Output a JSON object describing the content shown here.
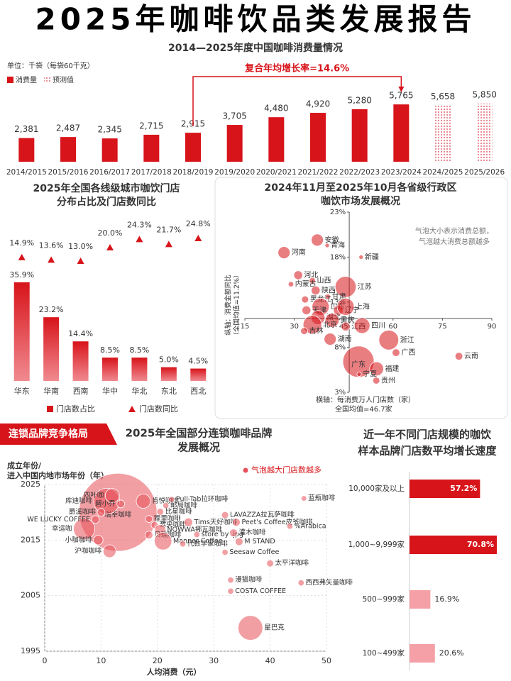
{
  "title": "2025年咖啡饮品类发展报告",
  "section_title": "连锁品牌竞争格局",
  "chart_data": [
    {
      "type": "bar",
      "title": "2014—2025年度中国咖啡消费量情况",
      "unit": "单位：千袋（每袋60千克）",
      "categories": [
        "2014/2015",
        "2015/2016",
        "2016/2017",
        "2017/2018",
        "2018/2019",
        "2019/2020",
        "2020/2021",
        "2021/2022",
        "2022/2023",
        "2023/2024",
        "2024/2025",
        "2025/2026"
      ],
      "series": [
        {
          "name": "消费量",
          "color": "#d7141a",
          "values": [
            2381,
            2487,
            2345,
            2715,
            2915,
            3705,
            4480,
            4920,
            5280,
            5765,
            null,
            null
          ],
          "value_labels": [
            "2,381",
            "2,487",
            "2,345",
            "2,715",
            "2,915",
            "3,705",
            "4,480",
            "4,920",
            "5,280",
            "5,765",
            null,
            null
          ]
        },
        {
          "name": "预测值",
          "color": "#e8808a",
          "pattern": "dots",
          "values": [
            null,
            null,
            null,
            null,
            null,
            null,
            null,
            null,
            null,
            null,
            5658,
            5850
          ],
          "value_labels": [
            null,
            null,
            null,
            null,
            null,
            null,
            null,
            null,
            null,
            null,
            "5,658",
            "5,850"
          ]
        }
      ],
      "annotation": {
        "text": "复合年均增长率=14.6%",
        "span": [
          "2018/2019",
          "2023/2024"
        ]
      }
    },
    {
      "type": "bar",
      "title": [
        "2025年全国各线级城市咖饮门店",
        "分布占比及门店数同比"
      ],
      "categories": [
        "华东",
        "华南",
        "西南",
        "华中",
        "华北",
        "东北",
        "西北"
      ],
      "series": [
        {
          "name": "门店数占比",
          "color": "#d7141a",
          "values": [
            35.9,
            23.2,
            14.4,
            8.5,
            8.5,
            5.0,
            4.5
          ],
          "value_labels": [
            "35.9%",
            "23.2%",
            "14.4%",
            "8.5%",
            "8.5%",
            "5.0%",
            "4.5%"
          ]
        },
        {
          "name": "门店数同比",
          "color": "#d7141a",
          "marker": "triangle",
          "values": [
            14.9,
            13.6,
            13.0,
            20.0,
            24.3,
            21.7,
            24.8
          ],
          "value_labels": [
            "14.9%",
            "13.6%",
            "13.0%",
            "20.0%",
            "24.3%",
            "21.7%",
            "24.8%"
          ]
        }
      ]
    },
    {
      "type": "bubble",
      "title": [
        "2024年11月至2025年10月各省级行政区",
        "咖饮市场发展概况"
      ],
      "note": [
        "气泡大小表示消费总额，",
        "气泡越大消费总额越多"
      ],
      "xlabel": [
        "横轴：每消费万人门店数（家）",
        "全国均值=46.7家"
      ],
      "ylabel": [
        "纵轴：消费金额同比",
        "（全国均值=11.2%）"
      ],
      "crossing": [
        46.7,
        11.2
      ],
      "color": "#d7141a",
      "xlim": [
        15,
        90
      ],
      "xticks": [
        15,
        30,
        45,
        60,
        75,
        90
      ],
      "ylim": [
        3,
        23
      ],
      "yticks": [
        {
          "value": 3,
          "label": "3%"
        },
        {
          "value": 8,
          "label": "8%"
        },
        {
          "value": 13,
          "label": "13%"
        },
        {
          "value": 18,
          "label": "18%"
        },
        {
          "value": 23,
          "label": "23%"
        }
      ],
      "points": [
        {
          "label": "安徽",
          "x": 37,
          "y": 19.9,
          "size": 15
        },
        {
          "label": "青海",
          "x": 40,
          "y": 19.3,
          "size": 2
        },
        {
          "label": "河南",
          "x": 26.9,
          "y": 18.5,
          "size": 15
        },
        {
          "label": "新疆",
          "x": 50.3,
          "y": 18.0,
          "size": 2
        },
        {
          "label": "河北",
          "x": 31.2,
          "y": 16.0,
          "size": 8
        },
        {
          "label": "山西",
          "x": 35.5,
          "y": 15.4,
          "size": 4
        },
        {
          "label": "内蒙古",
          "x": 29,
          "y": 15.0,
          "size": 3
        },
        {
          "label": "陕西",
          "x": 36.5,
          "y": 14.3,
          "size": 8
        },
        {
          "label": "江苏",
          "x": 45.6,
          "y": 14.7,
          "size": 45
        },
        {
          "label": "甘肃",
          "x": 40.2,
          "y": 13.6,
          "size": 3
        },
        {
          "label": "黑龙江",
          "x": 33.3,
          "y": 13.3,
          "size": 5
        },
        {
          "label": "山东",
          "x": 38,
          "y": 12.5,
          "size": 30
        },
        {
          "label": "天津",
          "x": 33.7,
          "y": 12.1,
          "size": 8
        },
        {
          "label": "辽宁",
          "x": 43.4,
          "y": 12.1,
          "size": 10
        },
        {
          "label": "上海",
          "x": 45.6,
          "y": 12.5,
          "size": 30
        },
        {
          "label": "湖北",
          "x": 37.2,
          "y": 11.3,
          "size": 20
        },
        {
          "label": "重庆",
          "x": 41.5,
          "y": 11.0,
          "size": 20
        },
        {
          "label": "北京",
          "x": 35.5,
          "y": 10.5,
          "size": 35
        },
        {
          "label": "吉林",
          "x": 33,
          "y": 9.8,
          "size": 5
        },
        {
          "label": "湖南",
          "x": 40.9,
          "y": 8.9,
          "size": 15
        },
        {
          "label": "江西",
          "x": 45.6,
          "y": 10.3,
          "size": 8
        },
        {
          "label": "四川",
          "x": 50.6,
          "y": 10.4,
          "size": 25
        },
        {
          "label": "浙江",
          "x": 58.7,
          "y": 8.8,
          "size": 40
        },
        {
          "label": "广东",
          "x": 49.5,
          "y": 6.4,
          "size": 100
        },
        {
          "label": "广西",
          "x": 60.9,
          "y": 7.4,
          "size": 6
        },
        {
          "label": "云南",
          "x": 80,
          "y": 7.0,
          "size": 6
        },
        {
          "label": "福建",
          "x": 55,
          "y": 5.6,
          "size": 20
        },
        {
          "label": "宁夏",
          "x": 49.7,
          "y": 5.0,
          "size": 2
        },
        {
          "label": "贵州",
          "x": 54.9,
          "y": 4.3,
          "size": 5
        }
      ]
    },
    {
      "type": "bubble",
      "title": [
        "2025年全国部分连锁咖啡品牌",
        "发展概况"
      ],
      "ylabel": [
        "成立年份/",
        "进入中国内地市场年份（年）"
      ],
      "xlabel": "人均消费（元）",
      "legend": "气泡越大门店数越多",
      "color": "#e8505a",
      "xlim": [
        0,
        50
      ],
      "xticks": [
        0,
        10,
        20,
        30,
        40,
        50
      ],
      "ylim": [
        1995,
        2025
      ],
      "yticks": [
        1995,
        2005,
        2015,
        2025
      ],
      "points": [
        {
          "label": "瑞幸咖啡",
          "x": 13,
          "y": 2020,
          "size": 100
        },
        {
          "label": "库迪咖啡",
          "x": 11,
          "y": 2022,
          "size": 11
        },
        {
          "label": "幸运咖",
          "x": 7,
          "y": 2017,
          "size": 7.5
        },
        {
          "label": "四叶咖",
          "x": 12,
          "y": 2023,
          "size": 3.3
        },
        {
          "label": "肯悦咖啡",
          "x": 17.5,
          "y": 2022,
          "size": 3.3
        },
        {
          "label": "碧小乔",
          "x": 13.5,
          "y": 2021.5,
          "size": 1
        },
        {
          "label": "爵溪咖啡",
          "x": 10,
          "y": 2020,
          "size": 1
        },
        {
          "label": "WE LUCKY COFFEE",
          "x": 9,
          "y": 2018.7,
          "size": 1
        },
        {
          "label": "小咖咖啡",
          "x": 9.5,
          "y": 2015,
          "size": 1.5
        },
        {
          "label": "沪咖咖啡",
          "x": 11.5,
          "y": 2013,
          "size": 2.7
        },
        {
          "label": "Pull-Tab拉环咖啡",
          "x": 22.5,
          "y": 2022.3,
          "size": 0.6
        },
        {
          "label": "邮局咖啡",
          "x": 21.5,
          "y": 2021.2,
          "size": 0.6
        },
        {
          "label": "比星咖啡",
          "x": 20.5,
          "y": 2020.1,
          "size": 0.8
        },
        {
          "label": "狸里咖啡",
          "x": 18.5,
          "y": 2018.8,
          "size": 0.8
        },
        {
          "label": "鹭央咖啡",
          "x": 19.5,
          "y": 2017.7,
          "size": 0.8
        },
        {
          "label": "NOWWA挪瓦咖啡",
          "x": 20.5,
          "y": 2016.8,
          "size": 2
        },
        {
          "label": "贝瑞咖啡",
          "x": 18.5,
          "y": 2015.9,
          "size": 1
        },
        {
          "label": "Manner Coffee",
          "x": 21,
          "y": 2014.8,
          "size": 5
        },
        {
          "label": "Tims天好咖啡",
          "x": 25.5,
          "y": 2018.2,
          "size": 1.2
        },
        {
          "label": "store by .jpg",
          "x": 27,
          "y": 2016,
          "size": 0.6
        },
        {
          "label": "代数学家咖啡",
          "x": 24.5,
          "y": 2014.3,
          "size": 0.6
        },
        {
          "label": "LAVAZZA拉瓦萨咖啡",
          "x": 32,
          "y": 2019.5,
          "size": 0.8
        },
        {
          "label": "Peet's Coffee皮爷咖啡",
          "x": 34,
          "y": 2018.2,
          "size": 1
        },
        {
          "label": "灌木咖啡",
          "x": 33.5,
          "y": 2016.3,
          "size": 1
        },
        {
          "label": "M STAND",
          "x": 34.5,
          "y": 2014.7,
          "size": 1
        },
        {
          "label": "Seesaw Coffee",
          "x": 32,
          "y": 2012.8,
          "size": 0.6
        },
        {
          "label": "蓝瓶咖啡",
          "x": 46,
          "y": 2022.5,
          "size": 0.5
        },
        {
          "label": "%Arabica",
          "x": 43.5,
          "y": 2017.5,
          "size": 0.6
        },
        {
          "label": "太平洋咖啡",
          "x": 40,
          "y": 2010.8,
          "size": 0.8
        },
        {
          "label": "漫猫咖啡",
          "x": 33,
          "y": 2007.8,
          "size": 0.6
        },
        {
          "label": "西西弗矢量咖啡",
          "x": 45.5,
          "y": 2007.3,
          "size": 0.6
        },
        {
          "label": "COSTA COFFEE",
          "x": 33,
          "y": 2005.8,
          "size": 0.6
        },
        {
          "label": "星巴克",
          "x": 36.5,
          "y": 1999.2,
          "size": 10
        }
      ]
    },
    {
      "type": "bar",
      "orientation": "horizontal",
      "title": [
        "近一年不同门店规模的咖饮",
        "样本品牌门店数平均增长速度"
      ],
      "categories": [
        "10,000家及以上",
        "1,000~9,999家",
        "500~999家",
        "100~499家"
      ],
      "values": [
        57.2,
        70.8,
        16.9,
        20.6
      ],
      "value_labels": [
        "57.2%",
        "70.8%",
        "16.9%",
        "20.6%"
      ],
      "colors": [
        "#d7141a",
        "#d7141a",
        "#f4a0a6",
        "#f4a0a6"
      ]
    }
  ]
}
